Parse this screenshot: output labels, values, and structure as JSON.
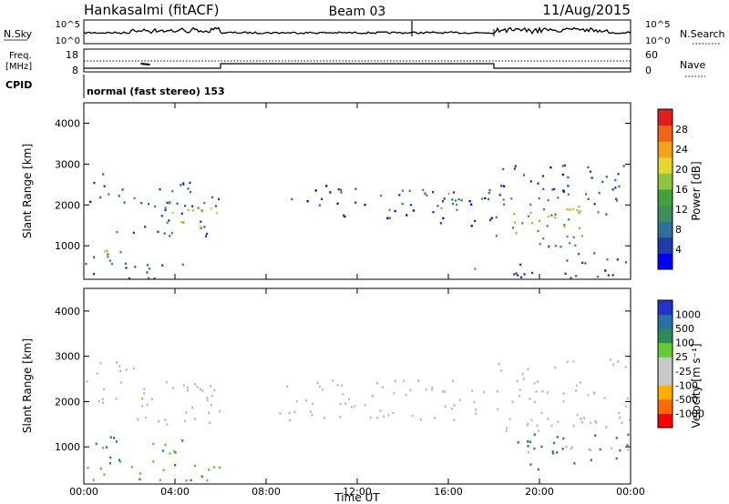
{
  "header": {
    "title": "Hankasalmi (fitACF)",
    "beam": "Beam 03",
    "date": "11/Aug/2015"
  },
  "noise_panel": {
    "left_label": "N.Sky",
    "right_label": "N.Search",
    "left_ticks": [
      "10^5",
      "10^0"
    ],
    "right_ticks": [
      "10^5",
      "10^0"
    ]
  },
  "freq_panel": {
    "left_label_line1": "Freq.",
    "left_label_line2": "[MHz]",
    "left_ticks": [
      "18",
      "8"
    ],
    "right_ticks": [
      "60",
      "0"
    ],
    "right_label": "Nave",
    "cpid_label": "CPID",
    "cpid_text": "normal (fast stereo) 153"
  },
  "colors": {
    "power": [
      "#0000ff",
      "#1f3ca8",
      "#2e6f9c",
      "#3e8f5a",
      "#44a03c",
      "#8fc440",
      "#e3d62e",
      "#f2a21e",
      "#ee6418",
      "#e01e1e"
    ],
    "velocity": [
      "#ff0000",
      "#ff6a00",
      "#ffae00",
      "#c8c8c8",
      "#c8c8c8",
      "#66cc33",
      "#2e8b57",
      "#2a6fa8",
      "#2233cc"
    ],
    "ground_scatter": "#c0c0b8"
  },
  "power_colorbar": {
    "label": "Power [dB]",
    "ticks": [
      "4",
      "8",
      "12",
      "16",
      "20",
      "24",
      "28"
    ]
  },
  "velocity_colorbar": {
    "label": "Velocity [m s⁻¹]",
    "ticks": [
      "-1000",
      "-500",
      "-100",
      "-25",
      "25",
      "100",
      "500",
      "1000"
    ]
  },
  "chart_data": [
    {
      "type": "heatmap",
      "panel": "power",
      "ylabel": "Slant Range [km]",
      "xlim": [
        0,
        24
      ],
      "ylim": [
        180,
        4500
      ],
      "yticks": [
        "1000",
        "2000",
        "3000",
        "4000"
      ],
      "xticks": [
        "00:00",
        "04:00",
        "08:00",
        "12:00",
        "16:00",
        "20:00",
        "00:00"
      ],
      "regions": [
        {
          "t": [
            0.0,
            2.0
          ],
          "r": [
            2050,
            2850
          ],
          "v": 4
        },
        {
          "t": [
            0.7,
            1.8
          ],
          "r": [
            2150,
            2450
          ],
          "v": 10
        },
        {
          "t": [
            2.0,
            6.0
          ],
          "r": [
            1200,
            2600
          ],
          "v": 6
        },
        {
          "t": [
            3.0,
            5.8
          ],
          "r": [
            1400,
            2100
          ],
          "v": 16
        },
        {
          "t": [
            4.0,
            5.6
          ],
          "r": [
            1450,
            1900
          ],
          "v": 22
        },
        {
          "t": [
            0.4,
            1.8
          ],
          "r": [
            650,
            1450
          ],
          "v": 10
        },
        {
          "t": [
            0.8,
            1.5
          ],
          "r": [
            800,
            1200
          ],
          "v": 20
        },
        {
          "t": [
            0.0,
            5.0
          ],
          "r": [
            220,
            600
          ],
          "v": 5
        },
        {
          "t": [
            9.0,
            11.0
          ],
          "r": [
            2000,
            2600
          ],
          "v": 4
        },
        {
          "t": [
            11.0,
            18.0
          ],
          "r": [
            1500,
            2500
          ],
          "v": 4
        },
        {
          "t": [
            13.0,
            17.5
          ],
          "r": [
            1850,
            2400
          ],
          "v": 12
        },
        {
          "t": [
            18.0,
            24.0
          ],
          "r": [
            2050,
            3000
          ],
          "v": 4
        },
        {
          "t": [
            18.0,
            22.0
          ],
          "r": [
            1000,
            2300
          ],
          "v": 12
        },
        {
          "t": [
            18.5,
            21.8
          ],
          "r": [
            1300,
            2000
          ],
          "v": 20
        },
        {
          "t": [
            21.4,
            21.8
          ],
          "r": [
            700,
            1100
          ],
          "v": 28
        },
        {
          "t": [
            22.0,
            24.0
          ],
          "r": [
            1700,
            2300
          ],
          "v": 10
        },
        {
          "t": [
            18.0,
            24.0
          ],
          "r": [
            200,
            700
          ],
          "v": 5
        },
        {
          "t": [
            22.3,
            23.2
          ],
          "r": [
            600,
            1000
          ],
          "v": 8
        },
        {
          "t": [
            17.0,
            17.8
          ],
          "r": [
            300,
            480
          ],
          "v": 22
        }
      ]
    },
    {
      "type": "heatmap",
      "panel": "velocity",
      "ylabel": "Slant Range [km]",
      "xlabel": "Time UT",
      "xlim": [
        0,
        24
      ],
      "ylim": [
        180,
        4500
      ],
      "yticks": [
        "1000",
        "2000",
        "3000",
        "4000"
      ],
      "xticks": [
        "00:00",
        "04:00",
        "08:00",
        "12:00",
        "16:00",
        "20:00",
        "00:00"
      ],
      "regions": [
        {
          "t": [
            0.0,
            2.2
          ],
          "r": [
            2000,
            2900
          ],
          "v": "gs"
        },
        {
          "t": [
            2.0,
            6.0
          ],
          "r": [
            1400,
            2500
          ],
          "v": "gs"
        },
        {
          "t": [
            0.5,
            1.7
          ],
          "r": [
            600,
            1500
          ],
          "v": 150
        },
        {
          "t": [
            0.8,
            1.4
          ],
          "r": [
            800,
            1200
          ],
          "v": 600
        },
        {
          "t": [
            0.0,
            6.0
          ],
          "r": [
            250,
            650
          ],
          "v": 80
        },
        {
          "t": [
            3.0,
            5.0
          ],
          "r": [
            600,
            1200
          ],
          "v": 120
        },
        {
          "t": [
            8.5,
            18.0
          ],
          "r": [
            1600,
            2500
          ],
          "v": "gs"
        },
        {
          "t": [
            18.0,
            24.0
          ],
          "r": [
            1300,
            3000
          ],
          "v": "gs"
        },
        {
          "t": [
            18.0,
            24.0
          ],
          "r": [
            850,
            1100
          ],
          "v": "gs"
        },
        {
          "t": [
            19.0,
            21.5
          ],
          "r": [
            500,
            1300
          ],
          "v": 200
        },
        {
          "t": [
            20.0,
            21.0
          ],
          "r": [
            700,
            1100
          ],
          "v": 700
        },
        {
          "t": [
            22.0,
            24.0
          ],
          "r": [
            650,
            1300
          ],
          "v": 300
        },
        {
          "t": [
            17.0,
            17.8
          ],
          "r": [
            350,
            500
          ],
          "v": -200
        },
        {
          "t": [
            2.2,
            2.6
          ],
          "r": [
            1900,
            2100
          ],
          "v": -150
        }
      ]
    }
  ]
}
